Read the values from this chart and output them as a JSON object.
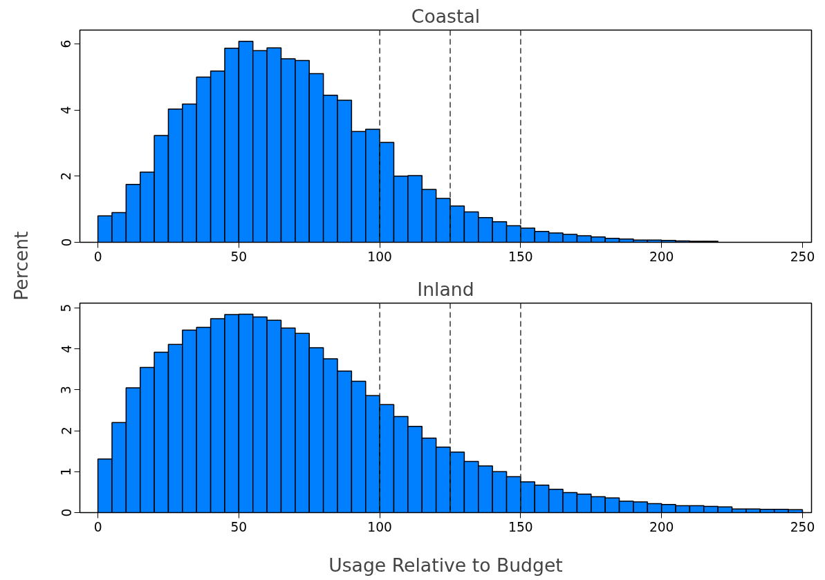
{
  "chart_data": [
    {
      "type": "histogram",
      "title": "Coastal",
      "ylabel": "Percent",
      "color": "#007fff",
      "bins": [
        0,
        5,
        10,
        15,
        20,
        25,
        30,
        35,
        40,
        45,
        50,
        55,
        60,
        65,
        70,
        75,
        80,
        85,
        90,
        95,
        100,
        105,
        110,
        115,
        120,
        125,
        130,
        135,
        140,
        145,
        150,
        155,
        160,
        165,
        170,
        175,
        180,
        185,
        190,
        195,
        200,
        205,
        210,
        215,
        220,
        225,
        230,
        235,
        240,
        245,
        250
      ],
      "values": [
        0.8,
        0.9,
        1.75,
        2.12,
        3.23,
        4.03,
        4.18,
        5.0,
        5.18,
        5.87,
        6.08,
        5.8,
        5.88,
        5.55,
        5.5,
        5.1,
        4.45,
        4.3,
        3.35,
        3.42,
        3.02,
        2.0,
        2.02,
        1.6,
        1.33,
        1.1,
        0.92,
        0.75,
        0.62,
        0.5,
        0.43,
        0.33,
        0.28,
        0.24,
        0.2,
        0.16,
        0.12,
        0.1,
        0.07,
        0.07,
        0.06,
        0.04,
        0.03,
        0.03,
        null,
        null,
        null,
        null,
        null,
        null
      ],
      "xlim": [
        -6.4,
        253.2
      ],
      "xticks": [
        0,
        50,
        100,
        150,
        200,
        250
      ],
      "ylim": [
        0,
        6.42
      ],
      "yticks": [
        0,
        2,
        4,
        6
      ],
      "ref_lines": [
        {
          "axis": "x",
          "value": 100,
          "line_style": "dashed"
        },
        {
          "axis": "x",
          "value": 125,
          "line_style": "dashed"
        },
        {
          "axis": "x",
          "value": 150,
          "line_style": "dashed"
        }
      ]
    },
    {
      "type": "histogram",
      "title": "Inland",
      "xlabel": "Usage Relative to Budget",
      "color": "#007fff",
      "bins": [
        0,
        5,
        10,
        15,
        20,
        25,
        30,
        35,
        40,
        45,
        50,
        55,
        60,
        65,
        70,
        75,
        80,
        85,
        90,
        95,
        100,
        105,
        110,
        115,
        120,
        125,
        130,
        135,
        140,
        145,
        150,
        155,
        160,
        165,
        170,
        175,
        180,
        185,
        190,
        195,
        200,
        205,
        210,
        215,
        220,
        225,
        230,
        235,
        240,
        245,
        250
      ],
      "values": [
        1.31,
        2.2,
        3.05,
        3.55,
        3.92,
        4.11,
        4.46,
        4.53,
        4.74,
        4.84,
        4.85,
        4.78,
        4.7,
        4.51,
        4.38,
        4.03,
        3.76,
        3.46,
        3.21,
        2.86,
        2.64,
        2.35,
        2.11,
        1.82,
        1.6,
        1.48,
        1.25,
        1.14,
        1.0,
        0.88,
        0.75,
        0.67,
        0.57,
        0.49,
        0.45,
        0.39,
        0.36,
        0.28,
        0.26,
        0.22,
        0.2,
        0.17,
        0.17,
        0.15,
        0.14,
        0.09,
        0.09,
        0.08,
        0.08,
        0.07
      ],
      "xlim": [
        -6.4,
        253.2
      ],
      "xticks": [
        0,
        50,
        100,
        150,
        200,
        250
      ],
      "ylim": [
        0,
        5.12
      ],
      "yticks": [
        0,
        1,
        2,
        3,
        4,
        5
      ],
      "ref_lines": [
        {
          "axis": "x",
          "value": 100,
          "line_style": "dashed"
        },
        {
          "axis": "x",
          "value": 125,
          "line_style": "dashed"
        },
        {
          "axis": "x",
          "value": 150,
          "line_style": "dashed"
        }
      ]
    }
  ]
}
